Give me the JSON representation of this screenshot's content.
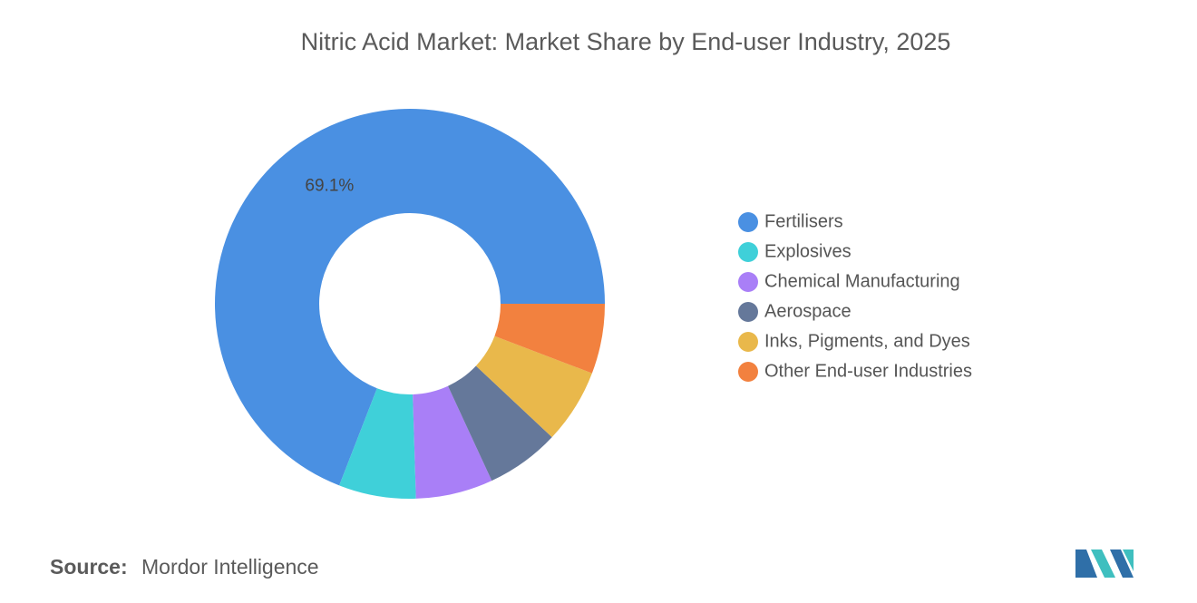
{
  "chart_data": {
    "type": "donut",
    "title": "Nitric Acid Market: Market Share by End-user Industry, 2025",
    "categories": [
      "Fertilisers",
      "Explosives",
      "Chemical Manufacturing",
      "Aerospace",
      "Inks, Pigments, and Dyes",
      "Other End-user Industries"
    ],
    "values": [
      69.1,
      6.4,
      6.4,
      6.1,
      6.2,
      5.8
    ],
    "value_labels": [
      "69.1%",
      null,
      null,
      null,
      null,
      null
    ],
    "colors": [
      "#4a90e2",
      "#3fd0d9",
      "#a97ff7",
      "#65789a",
      "#e9b84b",
      "#f2813f"
    ],
    "legend": "right"
  },
  "source": {
    "label": "Source:",
    "text": "Mordor Intelligence"
  }
}
